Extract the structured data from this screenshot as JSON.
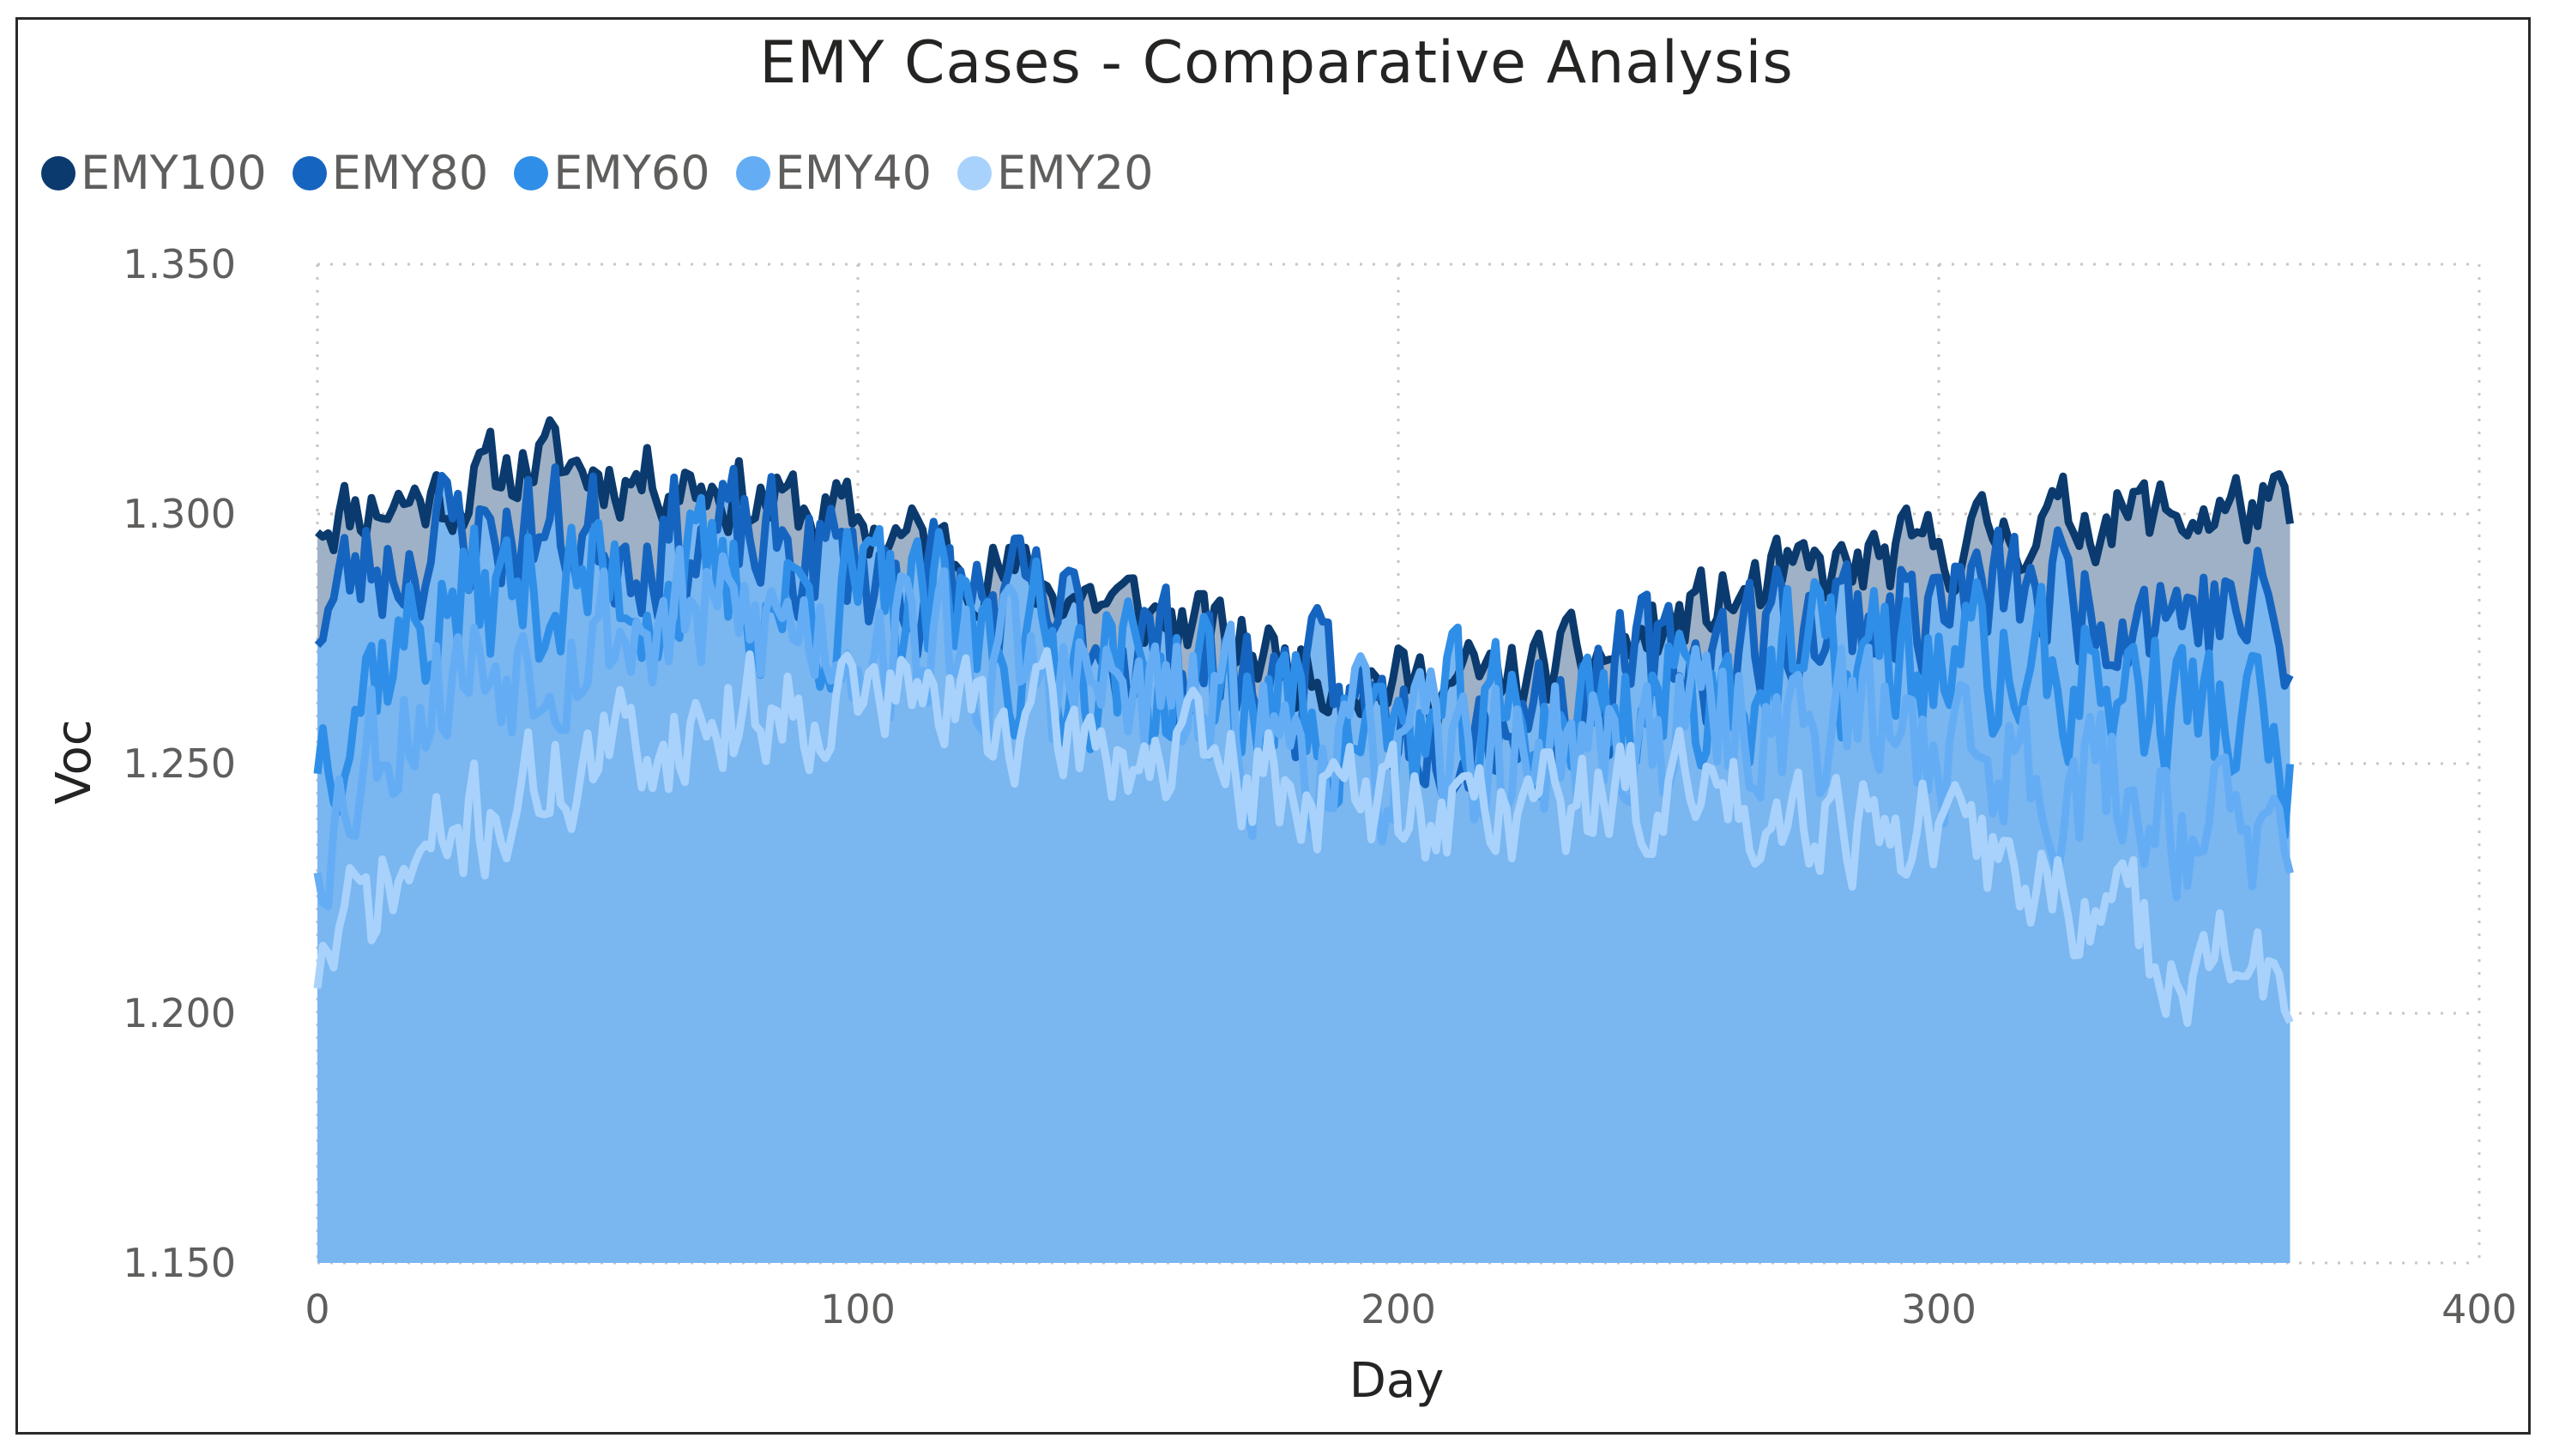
{
  "chart_data": {
    "type": "area",
    "title": "EMY Cases - Comparative Analysis",
    "xlabel": "Day",
    "ylabel": "Voc",
    "xlim": [
      0,
      400
    ],
    "ylim": [
      1.15,
      1.35
    ],
    "x_ticks": [
      "0",
      "100",
      "200",
      "300",
      "400"
    ],
    "y_ticks": [
      "1.150",
      "1.200",
      "1.250",
      "1.300",
      "1.350"
    ],
    "grid": "dotted",
    "legend": "top-left",
    "x_range": [
      0,
      365
    ],
    "fill_color": "#7ab6f0",
    "series": [
      {
        "name": "EMY100",
        "color": "#0b3a6e",
        "anchors": [
          [
            0,
            1.3
          ],
          [
            10,
            1.302
          ],
          [
            25,
            1.304
          ],
          [
            40,
            1.311
          ],
          [
            55,
            1.308
          ],
          [
            70,
            1.307
          ],
          [
            85,
            1.302
          ],
          [
            100,
            1.298
          ],
          [
            115,
            1.293
          ],
          [
            130,
            1.287
          ],
          [
            145,
            1.283
          ],
          [
            160,
            1.278
          ],
          [
            175,
            1.272
          ],
          [
            190,
            1.268
          ],
          [
            200,
            1.266
          ],
          [
            210,
            1.266
          ],
          [
            225,
            1.268
          ],
          [
            240,
            1.272
          ],
          [
            255,
            1.28
          ],
          [
            270,
            1.286
          ],
          [
            285,
            1.289
          ],
          [
            300,
            1.293
          ],
          [
            315,
            1.297
          ],
          [
            330,
            1.3
          ],
          [
            345,
            1.3
          ],
          [
            360,
            1.301
          ],
          [
            365,
            1.298
          ]
        ],
        "noise": 0.008,
        "seed": 11
      },
      {
        "name": "EMY80",
        "color": "#1565c0",
        "anchors": [
          [
            0,
            1.28
          ],
          [
            10,
            1.29
          ],
          [
            25,
            1.296
          ],
          [
            40,
            1.297
          ],
          [
            55,
            1.296
          ],
          [
            70,
            1.295
          ],
          [
            85,
            1.292
          ],
          [
            100,
            1.29
          ],
          [
            115,
            1.285
          ],
          [
            130,
            1.28
          ],
          [
            145,
            1.276
          ],
          [
            160,
            1.271
          ],
          [
            175,
            1.266
          ],
          [
            190,
            1.262
          ],
          [
            200,
            1.26
          ],
          [
            210,
            1.26
          ],
          [
            225,
            1.262
          ],
          [
            240,
            1.266
          ],
          [
            255,
            1.272
          ],
          [
            270,
            1.277
          ],
          [
            285,
            1.28
          ],
          [
            300,
            1.282
          ],
          [
            315,
            1.284
          ],
          [
            330,
            1.284
          ],
          [
            345,
            1.282
          ],
          [
            360,
            1.28
          ],
          [
            365,
            1.27
          ]
        ],
        "noise": 0.014,
        "seed": 23
      },
      {
        "name": "EMY60",
        "color": "#2f8fe8",
        "anchors": [
          [
            0,
            1.255
          ],
          [
            10,
            1.27
          ],
          [
            25,
            1.282
          ],
          [
            40,
            1.285
          ],
          [
            55,
            1.286
          ],
          [
            70,
            1.285
          ],
          [
            85,
            1.283
          ],
          [
            100,
            1.282
          ],
          [
            115,
            1.278
          ],
          [
            130,
            1.274
          ],
          [
            145,
            1.27
          ],
          [
            160,
            1.266
          ],
          [
            175,
            1.261
          ],
          [
            190,
            1.258
          ],
          [
            200,
            1.256
          ],
          [
            210,
            1.256
          ],
          [
            225,
            1.258
          ],
          [
            240,
            1.261
          ],
          [
            255,
            1.265
          ],
          [
            270,
            1.268
          ],
          [
            285,
            1.27
          ],
          [
            300,
            1.27
          ],
          [
            315,
            1.268
          ],
          [
            330,
            1.266
          ],
          [
            345,
            1.262
          ],
          [
            360,
            1.256
          ],
          [
            365,
            1.24
          ]
        ],
        "noise": 0.016,
        "seed": 37
      },
      {
        "name": "EMY40",
        "color": "#64adf5",
        "anchors": [
          [
            0,
            1.235
          ],
          [
            10,
            1.255
          ],
          [
            25,
            1.268
          ],
          [
            40,
            1.274
          ],
          [
            55,
            1.277
          ],
          [
            70,
            1.278
          ],
          [
            85,
            1.278
          ],
          [
            100,
            1.277
          ],
          [
            115,
            1.273
          ],
          [
            130,
            1.268
          ],
          [
            145,
            1.264
          ],
          [
            160,
            1.26
          ],
          [
            175,
            1.255
          ],
          [
            190,
            1.252
          ],
          [
            200,
            1.25
          ],
          [
            210,
            1.25
          ],
          [
            225,
            1.252
          ],
          [
            240,
            1.254
          ],
          [
            255,
            1.257
          ],
          [
            270,
            1.259
          ],
          [
            285,
            1.258
          ],
          [
            300,
            1.255
          ],
          [
            315,
            1.25
          ],
          [
            330,
            1.246
          ],
          [
            345,
            1.24
          ],
          [
            360,
            1.234
          ],
          [
            365,
            1.22
          ]
        ],
        "noise": 0.016,
        "seed": 53
      },
      {
        "name": "EMY20",
        "color": "#a8d2fb",
        "anchors": [
          [
            0,
            1.21
          ],
          [
            10,
            1.222
          ],
          [
            25,
            1.235
          ],
          [
            40,
            1.245
          ],
          [
            55,
            1.252
          ],
          [
            70,
            1.258
          ],
          [
            85,
            1.262
          ],
          [
            100,
            1.264
          ],
          [
            115,
            1.262
          ],
          [
            130,
            1.258
          ],
          [
            145,
            1.254
          ],
          [
            160,
            1.25
          ],
          [
            175,
            1.246
          ],
          [
            190,
            1.243
          ],
          [
            200,
            1.241
          ],
          [
            210,
            1.241
          ],
          [
            225,
            1.242
          ],
          [
            240,
            1.243
          ],
          [
            255,
            1.244
          ],
          [
            270,
            1.243
          ],
          [
            285,
            1.24
          ],
          [
            300,
            1.235
          ],
          [
            315,
            1.228
          ],
          [
            330,
            1.22
          ],
          [
            345,
            1.212
          ],
          [
            360,
            1.208
          ],
          [
            365,
            1.198
          ]
        ],
        "noise": 0.012,
        "seed": 71
      }
    ]
  }
}
